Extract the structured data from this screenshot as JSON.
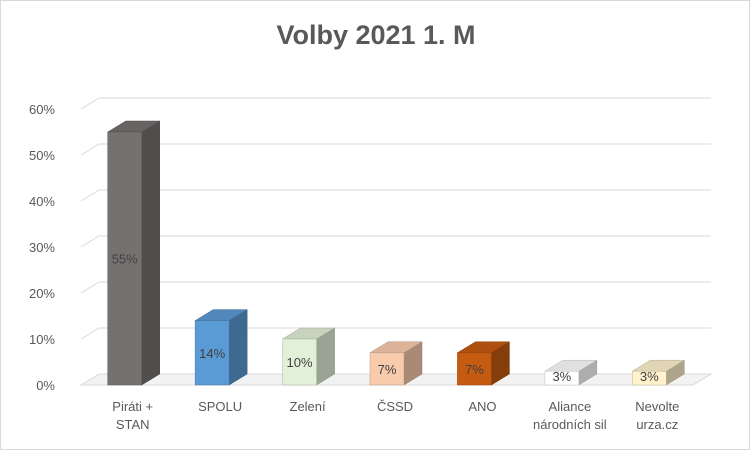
{
  "chart_data": {
    "type": "bar",
    "title": "Volby 2021 1. M",
    "categories": [
      [
        "Piráti +",
        "STAN"
      ],
      [
        "SPOLU"
      ],
      [
        "Zelení"
      ],
      [
        "ČSSD"
      ],
      [
        "ANO"
      ],
      [
        "Aliance",
        "národních sil"
      ],
      [
        "Nevolte",
        "urza.cz"
      ]
    ],
    "values": [
      55,
      14,
      10,
      7,
      7,
      3,
      3
    ],
    "data_labels": [
      "55%",
      "14%",
      "10%",
      "7%",
      "7%",
      "3%",
      "3%"
    ],
    "colors": [
      "#767171",
      "#5b9bd5",
      "#e2f0d9",
      "#f8cbad",
      "#c55a11",
      "#ffffff",
      "#fff2cc"
    ],
    "ylim": [
      0,
      60
    ],
    "yticks": [
      0,
      10,
      20,
      30,
      40,
      50,
      60
    ],
    "ytick_labels": [
      "0%",
      "10%",
      "20%",
      "30%",
      "40%",
      "50%",
      "60%"
    ],
    "grid": true,
    "legend": "none"
  }
}
